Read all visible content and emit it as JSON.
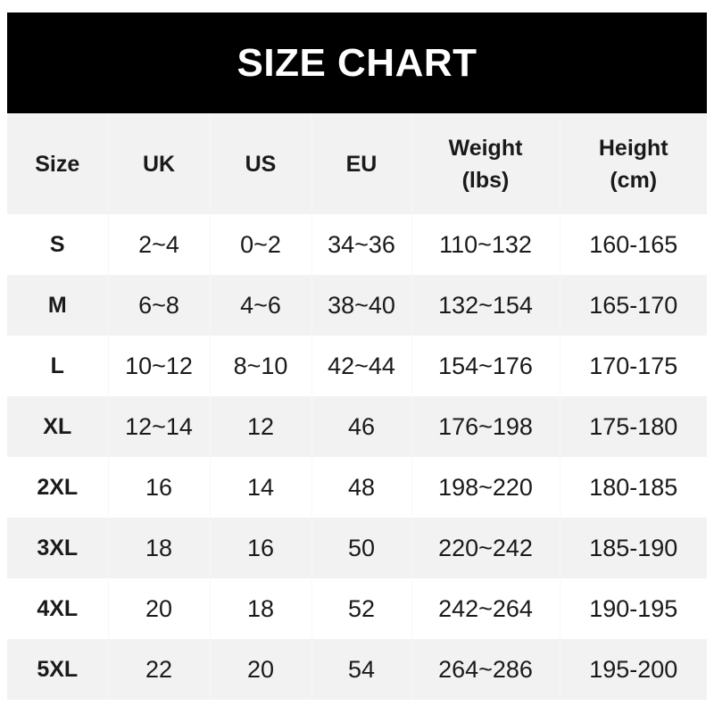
{
  "title": "SIZE CHART",
  "columns": [
    {
      "line1": "Size",
      "line2": ""
    },
    {
      "line1": "UK",
      "line2": ""
    },
    {
      "line1": "US",
      "line2": ""
    },
    {
      "line1": "EU",
      "line2": ""
    },
    {
      "line1": "Weight",
      "line2": "(lbs)"
    },
    {
      "line1": "Height",
      "line2": "(cm)"
    }
  ],
  "rows": [
    [
      "S",
      "2~4",
      "0~2",
      "34~36",
      "110~132",
      "160-165"
    ],
    [
      "M",
      "6~8",
      "4~6",
      "38~40",
      "132~154",
      "165-170"
    ],
    [
      "L",
      "10~12",
      "8~10",
      "42~44",
      "154~176",
      "170-175"
    ],
    [
      "XL",
      "12~14",
      "12",
      "46",
      "176~198",
      "175-180"
    ],
    [
      "2XL",
      "16",
      "14",
      "48",
      "198~220",
      "180-185"
    ],
    [
      "3XL",
      "18",
      "16",
      "50",
      "220~242",
      "185-190"
    ],
    [
      "4XL",
      "20",
      "18",
      "52",
      "242~264",
      "190-195"
    ],
    [
      "5XL",
      "22",
      "20",
      "54",
      "264~286",
      "195-200"
    ]
  ],
  "colors": {
    "title_bg": "#000000",
    "header_bg": "#f2f2f2",
    "stripe_bg": "#f2f2f2"
  }
}
